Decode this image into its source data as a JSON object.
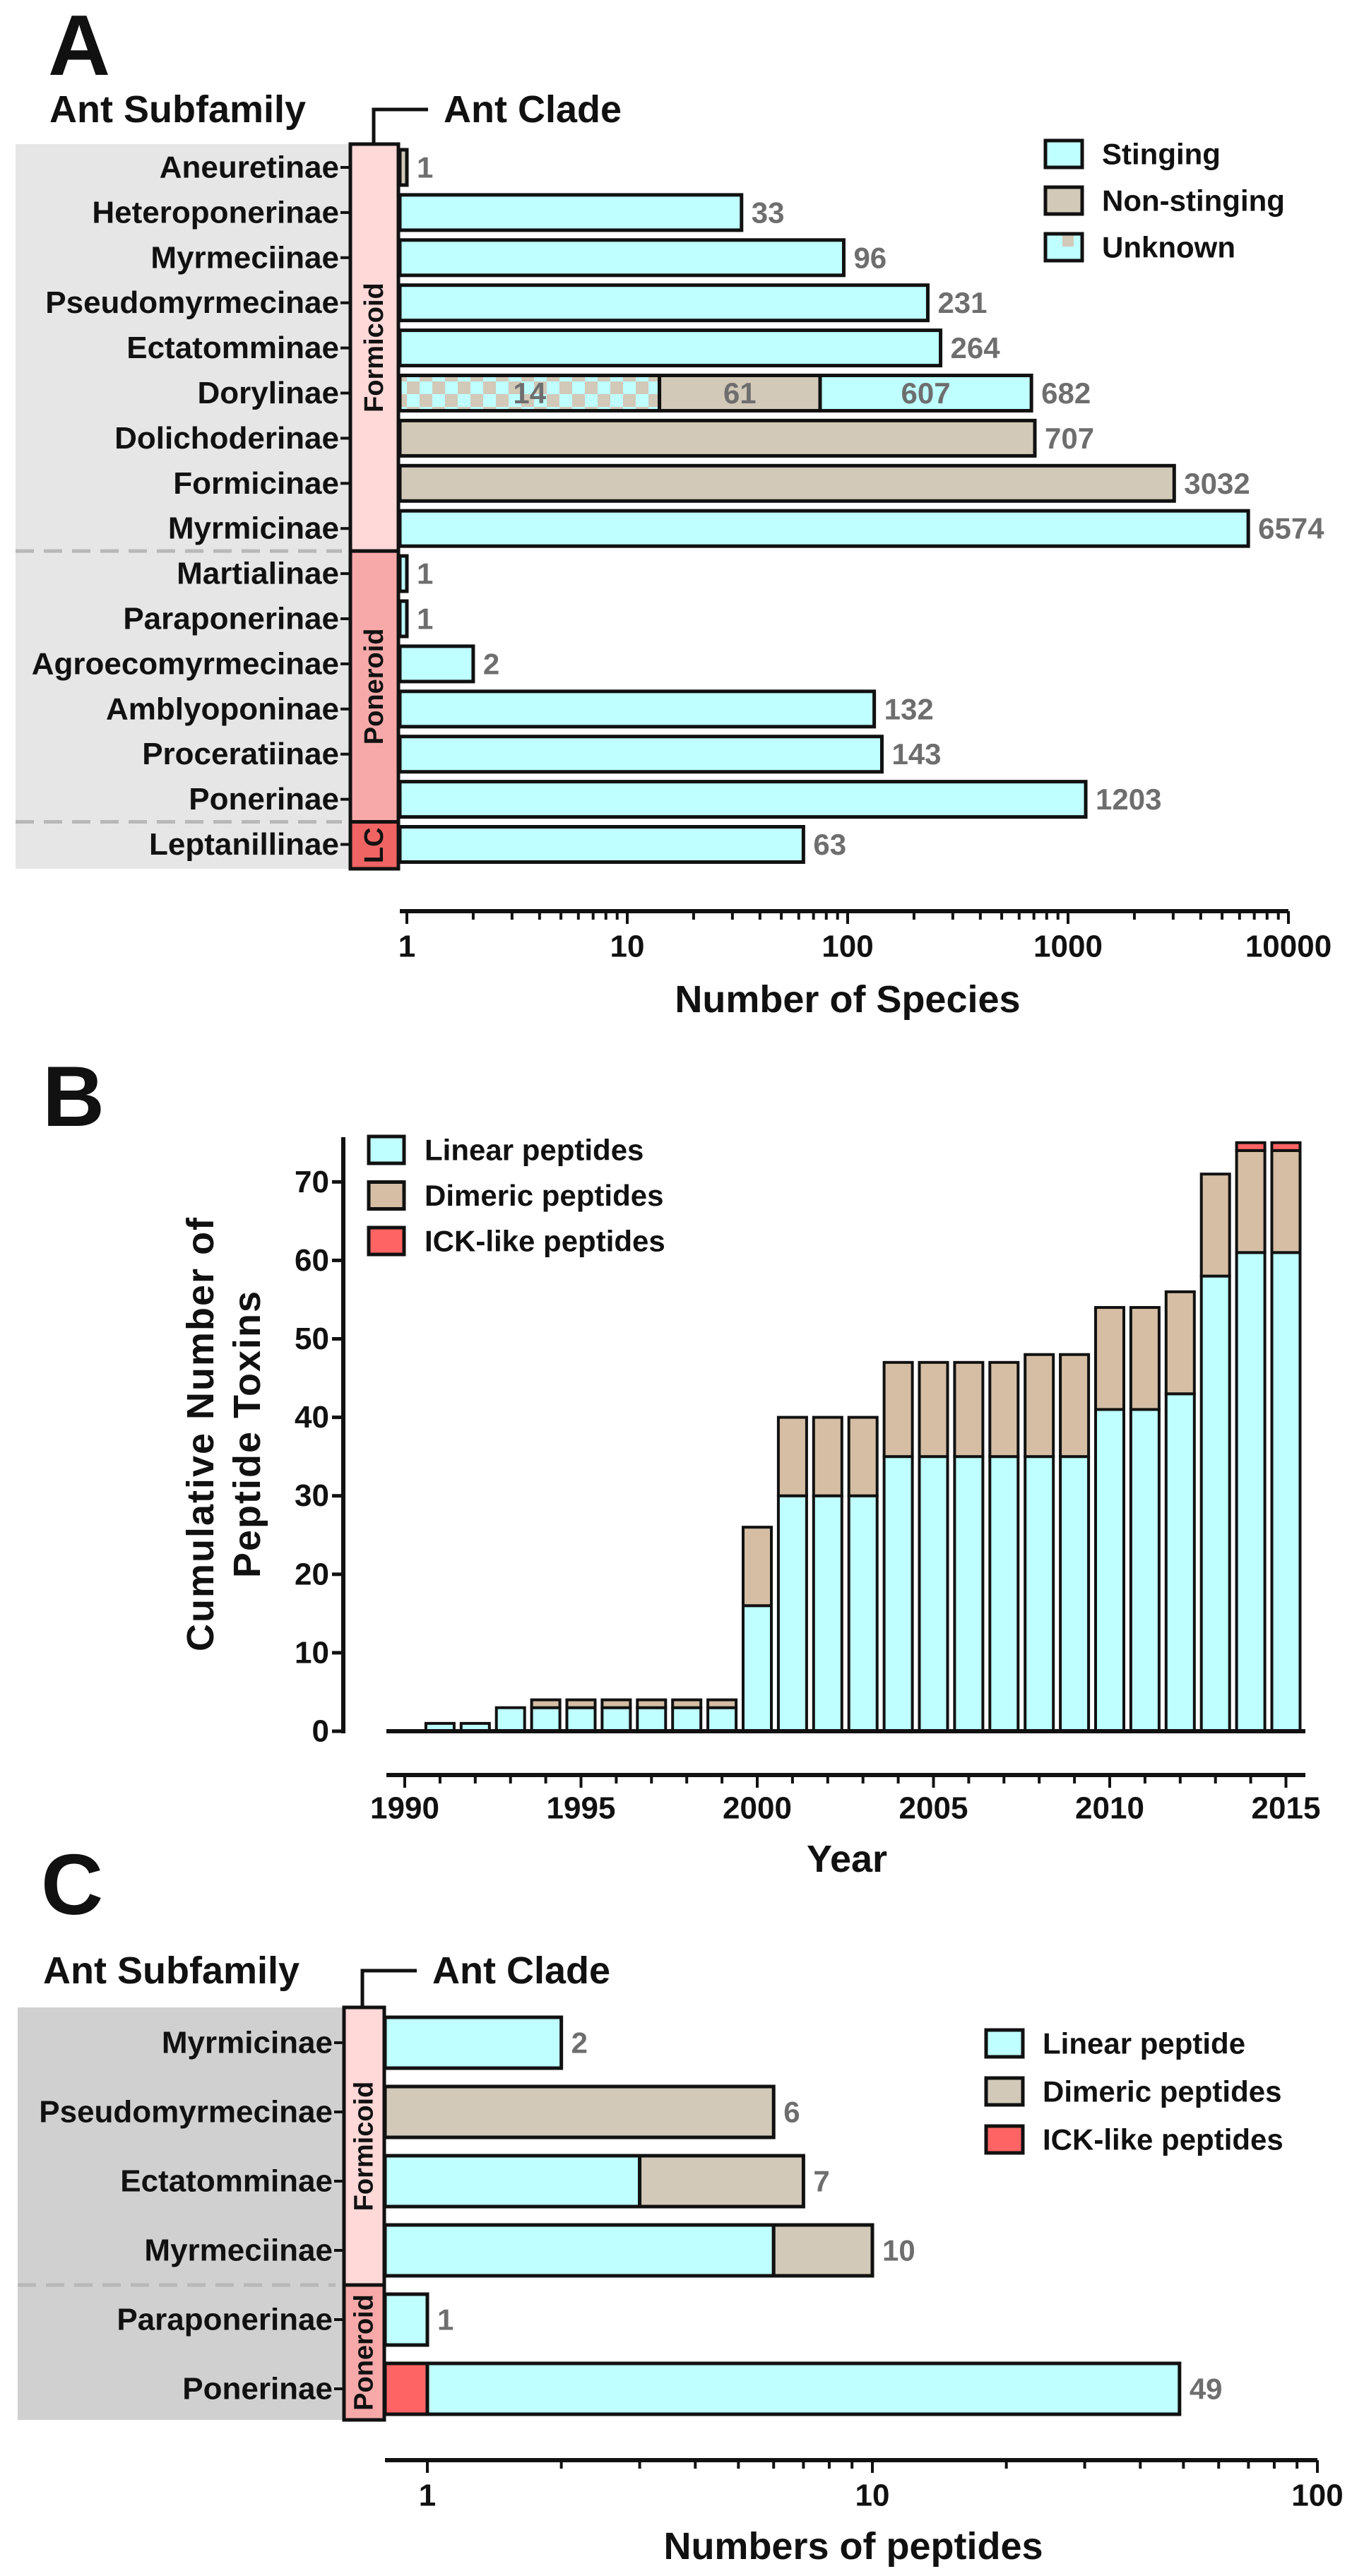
{
  "colors": {
    "stinging": "#bfffff",
    "non_stinging": "#d2c9b8",
    "dimeric_b": "#d5bea4",
    "ick": "#ff6464",
    "formicoid": "#ffd8d8",
    "poneroid": "#f7a9a9",
    "lc": "#f06464",
    "bg_a": "#e6e6e6",
    "bg_c": "#d0d0d0",
    "value_label": "#6e6e6e"
  },
  "chart_data": [
    {
      "panel": "A",
      "type": "bar",
      "orientation": "horizontal",
      "stacked": true,
      "xscale": "log",
      "xlim": [
        1,
        10000
      ],
      "xticks": [
        "1",
        "10",
        "100",
        "1000",
        "10000"
      ],
      "xlabel": "Number of Species",
      "row_header": "Ant Subfamily",
      "clade_header": "Ant Clade",
      "legend_position": "top-right",
      "legend": [
        {
          "key": "S",
          "name": "Stinging"
        },
        {
          "key": "NS",
          "name": "Non-stinging"
        },
        {
          "key": "U",
          "name": "Unknown"
        }
      ],
      "clades": [
        {
          "name": "Formicoid",
          "first": 0,
          "last": 8
        },
        {
          "name": "Poneroid",
          "first": 9,
          "last": 14
        },
        {
          "name": "LC",
          "first": 15,
          "last": 15
        }
      ],
      "rows": [
        {
          "name": "Aneuretinae",
          "total": "1",
          "segments": [
            {
              "s": "NS",
              "v": 1
            }
          ]
        },
        {
          "name": "Heteroponerinae",
          "total": "33",
          "segments": [
            {
              "s": "S",
              "v": 33
            }
          ]
        },
        {
          "name": "Myrmeciinae",
          "total": "96",
          "segments": [
            {
              "s": "S",
              "v": 96
            }
          ]
        },
        {
          "name": "Pseudomyrmecinae",
          "total": "231",
          "segments": [
            {
              "s": "S",
              "v": 231
            }
          ]
        },
        {
          "name": "Ectatomminae",
          "total": "264",
          "segments": [
            {
              "s": "S",
              "v": 264
            }
          ]
        },
        {
          "name": "Dorylinae",
          "total": "682",
          "segments": [
            {
              "s": "U",
              "v": 14,
              "label": "14"
            },
            {
              "s": "NS",
              "v": 61,
              "label": "61"
            },
            {
              "s": "S",
              "v": 607,
              "label": "607"
            }
          ]
        },
        {
          "name": "Dolichoderinae",
          "total": "707",
          "segments": [
            {
              "s": "NS",
              "v": 707
            }
          ]
        },
        {
          "name": "Formicinae",
          "total": "3032",
          "segments": [
            {
              "s": "NS",
              "v": 3032
            }
          ]
        },
        {
          "name": "Myrmicinae",
          "total": "6574",
          "segments": [
            {
              "s": "S",
              "v": 6574
            }
          ]
        },
        {
          "name": "Martialinae",
          "total": "1",
          "segments": [
            {
              "s": "S",
              "v": 1
            }
          ]
        },
        {
          "name": "Paraponerinae",
          "total": "1",
          "segments": [
            {
              "s": "S",
              "v": 1
            }
          ]
        },
        {
          "name": "Agroecomyrmecinae",
          "total": "2",
          "segments": [
            {
              "s": "S",
              "v": 2
            }
          ]
        },
        {
          "name": "Amblyoponinae",
          "total": "132",
          "segments": [
            {
              "s": "S",
              "v": 132
            }
          ]
        },
        {
          "name": "Proceratiinae",
          "total": "143",
          "segments": [
            {
              "s": "S",
              "v": 143
            }
          ]
        },
        {
          "name": "Ponerinae",
          "total": "1203",
          "segments": [
            {
              "s": "S",
              "v": 1203
            }
          ]
        },
        {
          "name": "Leptanillinae",
          "total": "63",
          "segments": [
            {
              "s": "S",
              "v": 63
            }
          ]
        }
      ]
    },
    {
      "panel": "B",
      "type": "bar",
      "stacked": true,
      "xlabel": "Year",
      "ylabel_lines": [
        "Cumulative Number of",
        "Peptide Toxins"
      ],
      "ylim": [
        0,
        75
      ],
      "yticks": [
        "0",
        "10",
        "20",
        "30",
        "40",
        "50",
        "60",
        "70"
      ],
      "xticks": [
        "1990",
        "1995",
        "2000",
        "2005",
        "2010",
        "2015"
      ],
      "legend_position": "top-left",
      "x": [
        1990,
        1991,
        1992,
        1993,
        1994,
        1995,
        1996,
        1997,
        1998,
        1999,
        2000,
        2001,
        2002,
        2003,
        2004,
        2005,
        2006,
        2007,
        2008,
        2009,
        2010,
        2011,
        2012,
        2013,
        2014,
        2015
      ],
      "series": [
        {
          "key": "linear",
          "name": "Linear peptides",
          "values": [
            0,
            1,
            1,
            3,
            3,
            3,
            3,
            3,
            3,
            3,
            16,
            30,
            30,
            30,
            35,
            35,
            35,
            35,
            35,
            35,
            41,
            41,
            43,
            58,
            61,
            61
          ]
        },
        {
          "key": "dimeric",
          "name": "Dimeric peptides",
          "values": [
            0,
            0,
            0,
            0,
            1,
            1,
            1,
            1,
            1,
            1,
            10,
            10,
            10,
            10,
            12,
            12,
            12,
            12,
            13,
            13,
            13,
            13,
            13,
            13,
            13,
            13
          ]
        },
        {
          "key": "ick",
          "name": "ICK-like peptides",
          "values": [
            0,
            0,
            0,
            0,
            0,
            0,
            0,
            0,
            0,
            0,
            0,
            0,
            0,
            0,
            0,
            0,
            0,
            0,
            0,
            0,
            0,
            0,
            0,
            0,
            1,
            1
          ]
        }
      ]
    },
    {
      "panel": "C",
      "type": "bar",
      "orientation": "horizontal",
      "stacked": true,
      "xscale": "log",
      "xlim": [
        1,
        100
      ],
      "xticks": [
        "1",
        "10",
        "100"
      ],
      "xlabel": "Numbers of peptides",
      "row_header": "Ant Subfamily",
      "clade_header": "Ant Clade",
      "legend_position": "top-right",
      "legend": [
        {
          "key": "linear",
          "name": "Linear peptide"
        },
        {
          "key": "dimeric",
          "name": "Dimeric peptides"
        },
        {
          "key": "ick",
          "name": "ICK-like peptides"
        }
      ],
      "clades": [
        {
          "name": "Formicoid",
          "first": 0,
          "last": 3
        },
        {
          "name": "Poneroid",
          "first": 4,
          "last": 5
        }
      ],
      "rows": [
        {
          "name": "Myrmicinae",
          "total": "2",
          "segments": [
            {
              "s": "linear",
              "v": 2
            }
          ]
        },
        {
          "name": "Pseudomyrmecinae",
          "total": "6",
          "segments": [
            {
              "s": "dimeric",
              "v": 6
            }
          ]
        },
        {
          "name": "Ectatomminae",
          "total": "7",
          "segments": [
            {
              "s": "linear",
              "v": 3
            },
            {
              "s": "dimeric",
              "v": 4
            }
          ]
        },
        {
          "name": "Myrmeciinae",
          "total": "10",
          "segments": [
            {
              "s": "linear",
              "v": 6
            },
            {
              "s": "dimeric",
              "v": 4
            }
          ]
        },
        {
          "name": "Paraponerinae",
          "total": "1",
          "segments": [
            {
              "s": "linear",
              "v": 1
            }
          ]
        },
        {
          "name": "Ponerinae",
          "total": "49",
          "segments": [
            {
              "s": "ick",
              "v": 1
            },
            {
              "s": "linear",
              "v": 48
            }
          ]
        }
      ]
    }
  ],
  "panel_letters": [
    "A",
    "B",
    "C"
  ]
}
